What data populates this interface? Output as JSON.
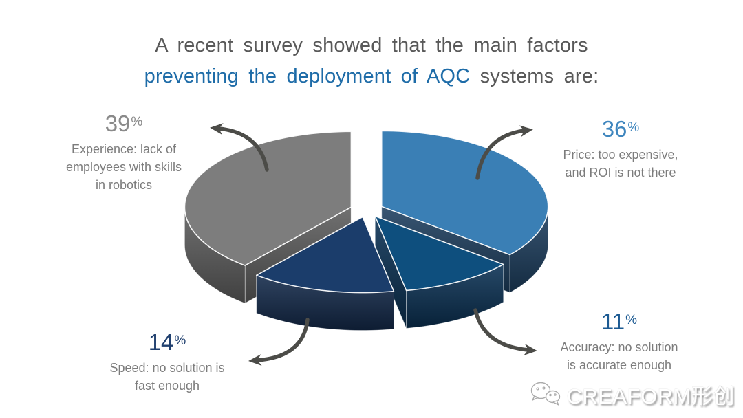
{
  "title": {
    "line1": "A recent survey showed that the main factors",
    "line2_blue": "preventing the deployment of AQC",
    "line2_rest": " systems are:"
  },
  "percent_sign": "%",
  "colors": {
    "background": "#FFFFFF",
    "title_gray": "#595959",
    "title_blue": "#1E6CA8",
    "label_text": "#7C7C7C",
    "arrow": "#4C4C48",
    "edge_highlight": "rgba(255,255,255,0.92)"
  },
  "chart_data": {
    "type": "pie",
    "style": "3d-exploded",
    "title": "A recent survey showed that the main factors preventing the deployment of AQC systems are:",
    "start_angle_deg": 0,
    "direction": "clockwise",
    "unit": "%",
    "slices": [
      {
        "name": "price",
        "value": 36,
        "pct": "36",
        "color": "#3A7FB5",
        "side_color": "#1E3F60",
        "number_color": "#3F86BE",
        "label_lines": [
          "Price: too expensive,",
          "and ROI is not there"
        ]
      },
      {
        "name": "accuracy",
        "value": 11,
        "pct": "11",
        "color": "#0E4F7E",
        "side_color": "#0A3053",
        "number_color": "#1C5A92",
        "label_lines": [
          "Accuracy: no solution",
          "is accurate enough"
        ]
      },
      {
        "name": "speed",
        "value": 14,
        "pct": "14",
        "color": "#1B3D6B",
        "side_color": "#13294A",
        "number_color": "#20406F",
        "label_lines": [
          "Speed: no solution is",
          "fast enough"
        ]
      },
      {
        "name": "experience",
        "value": 39,
        "pct": "39",
        "color": "#7D7D7D",
        "side_color": "#5E5E5E",
        "number_color": "#8A8A8A",
        "label_lines": [
          "Experience: lack of",
          "employees with skills",
          "in robotics"
        ]
      }
    ]
  },
  "logo": {
    "text": "CREAFORM形创",
    "icon": "wechat-bubbles-icon"
  }
}
